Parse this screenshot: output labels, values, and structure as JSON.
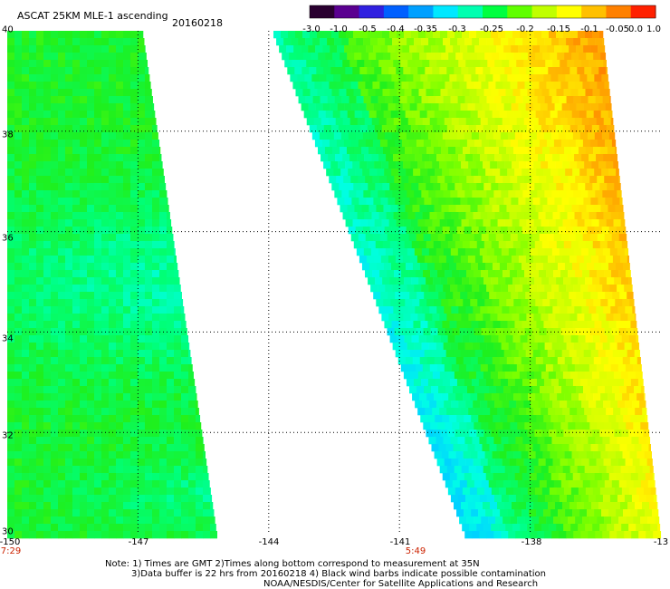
{
  "header": {
    "title": "ASCAT 25KM MLE-1 ascending",
    "date": "20160218"
  },
  "colorbar": {
    "labels": [
      "-3.0",
      "-1.0",
      "-0.5",
      "-0.4",
      "-0.35",
      "-0.3",
      "-0.25",
      "-0.2",
      "-0.15",
      "-0.1",
      "-0.05",
      "0.0",
      "1.0"
    ],
    "colors": [
      "#2a0030",
      "#5a0090",
      "#3020e0",
      "#0060ff",
      "#00a0ff",
      "#00e8ff",
      "#00ffb0",
      "#00ff40",
      "#60ff00",
      "#c0ff00",
      "#ffff00",
      "#ffc000",
      "#ff8000",
      "#ff2000"
    ]
  },
  "axes": {
    "x_ticks": [
      "-150",
      "-147",
      "-144",
      "-141",
      "-138",
      "-13"
    ],
    "y_ticks": [
      "40",
      "38",
      "36",
      "34",
      "32",
      "30"
    ],
    "lon_range": [
      -150,
      -135
    ],
    "lat_range": [
      30,
      40
    ]
  },
  "swath_times": [
    {
      "label": "7:29"
    },
    {
      "label": "5:49"
    }
  ],
  "notes": [
    "Note: 1) Times are GMT 2)Times along bottom correspond to measurement at 35N",
    "3)Data buffer is 22 hrs from 20160218 4) Black wind barbs indicate possible contamination",
    "NOAA/NESDIS/Center for Satellite Applications and Research"
  ]
}
